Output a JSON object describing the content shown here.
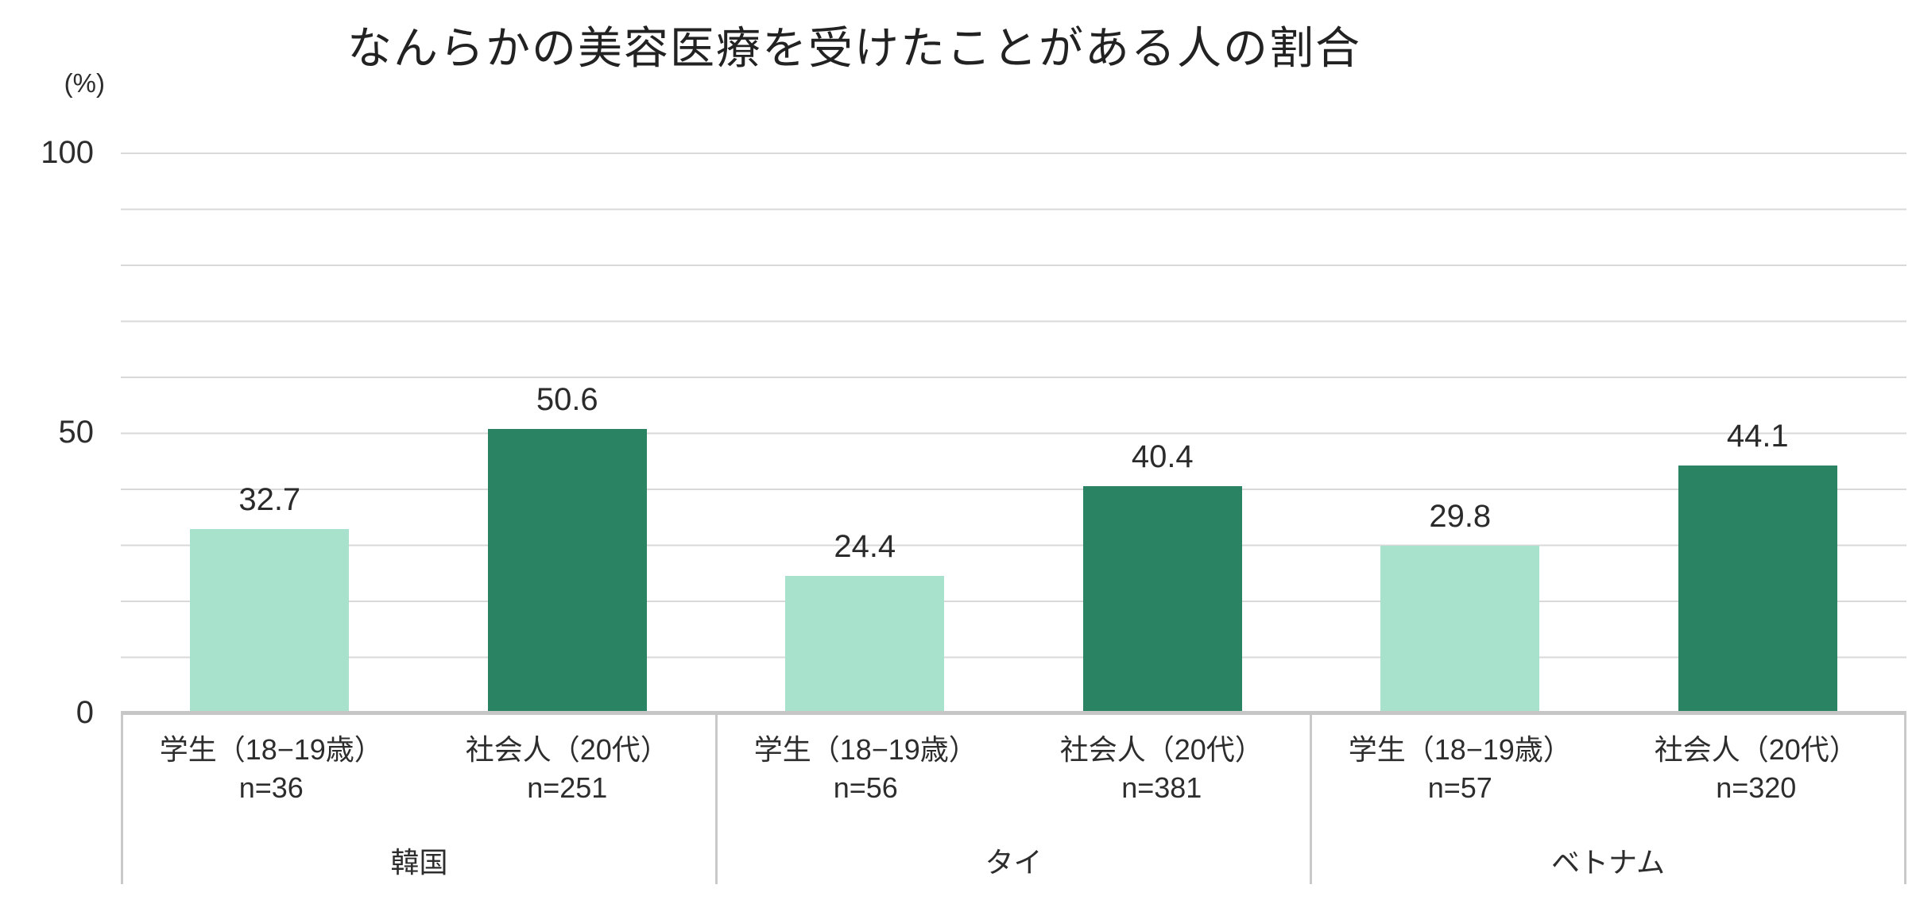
{
  "title": "なんらかの美容医療を受けたことがある人の割合",
  "y_axis": {
    "unit": "(%)",
    "ticks": [
      "100",
      "50",
      "0"
    ]
  },
  "colors": {
    "student_bar": "#a8e2cd",
    "adult_bar": "#2a8464",
    "gridline": "#d9d9d9",
    "axis_line": "#c6c6c6",
    "box_border": "#c9c9c9"
  },
  "groups": [
    {
      "country": "韓国",
      "bars": [
        {
          "series": "student",
          "label": "学生（18−19歳）",
          "n_label": "n=36",
          "value": 32.7,
          "value_label": "32.7"
        },
        {
          "series": "adult",
          "label": "社会人（20代）",
          "n_label": "n=251",
          "value": 50.6,
          "value_label": "50.6"
        }
      ]
    },
    {
      "country": "タイ",
      "bars": [
        {
          "series": "student",
          "label": "学生（18−19歳）",
          "n_label": "n=56",
          "value": 24.4,
          "value_label": "24.4"
        },
        {
          "series": "adult",
          "label": "社会人（20代）",
          "n_label": "n=381",
          "value": 40.4,
          "value_label": "40.4"
        }
      ]
    },
    {
      "country": "ベトナム",
      "bars": [
        {
          "series": "student",
          "label": "学生（18−19歳）",
          "n_label": "n=57",
          "value": 29.8,
          "value_label": "29.8"
        },
        {
          "series": "adult",
          "label": "社会人（20代）",
          "n_label": "n=320",
          "value": 44.1,
          "value_label": "44.1"
        }
      ]
    }
  ],
  "chart_data": {
    "type": "bar",
    "title": "なんらかの美容医療を受けたことがある人の割合",
    "categories": [
      "韓国",
      "タイ",
      "ベトナム"
    ],
    "series": [
      {
        "name": "学生（18−19歳）",
        "values": [
          32.7,
          24.4,
          29.8
        ],
        "sample_sizes": [
          36,
          56,
          57
        ],
        "color": "#a8e2cd"
      },
      {
        "name": "社会人（20代）",
        "values": [
          50.6,
          40.4,
          44.1
        ],
        "sample_sizes": [
          251,
          381,
          320
        ],
        "color": "#2a8464"
      }
    ],
    "xlabel": "",
    "ylabel": "(%)",
    "ylim": [
      0,
      100
    ],
    "gridline_step": 10,
    "grid": true,
    "ytick_labels": [
      100,
      50,
      0
    ],
    "legend_position": "none",
    "data_labels": true
  }
}
